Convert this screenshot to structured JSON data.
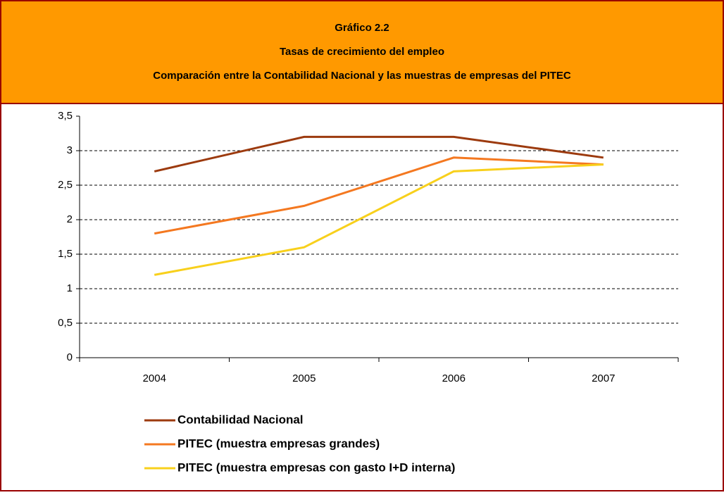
{
  "chart_data": {
    "type": "line",
    "title": "Gráfico 2.2",
    "subtitle": "Tasas de crecimiento del empleo",
    "description": "Comparación entre la Contabilidad Nacional y las muestras de empresas del PITEC",
    "categories": [
      "2004",
      "2005",
      "2006",
      "2007"
    ],
    "series": [
      {
        "name": "Contabilidad Nacional",
        "color": "#9c3a0e",
        "values": [
          2.7,
          3.2,
          3.2,
          2.9
        ]
      },
      {
        "name": "PITEC (muestra empresas grandes)",
        "color": "#f47820",
        "values": [
          1.8,
          2.2,
          2.9,
          2.8
        ]
      },
      {
        "name": "PITEC (muestra empresas con gasto I+D interna)",
        "color": "#f8d01c",
        "values": [
          1.2,
          1.6,
          2.7,
          2.8
        ]
      }
    ],
    "ylim": [
      0,
      3.5
    ],
    "yticks": [
      0,
      {
        "value": 0.5,
        "label": "0,5"
      },
      1,
      {
        "value": 1.5,
        "label": "1,5"
      },
      2,
      {
        "value": 2.5,
        "label": "2,5"
      },
      3,
      {
        "value": 3.5,
        "label": "3,5"
      }
    ],
    "grid": true,
    "legend": "bottom"
  }
}
